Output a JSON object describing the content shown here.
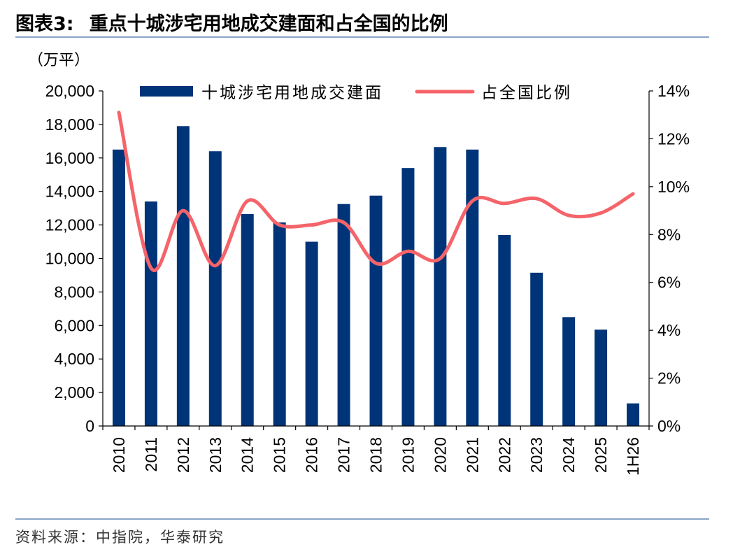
{
  "header": {
    "figure_number": "图表3:",
    "title": "重点十城涉宅用地成交建面和占全国的比例"
  },
  "footer": {
    "source": "资料来源：中指院，华泰研究"
  },
  "colors": {
    "bar": "#003478",
    "line": "#f4646a",
    "rule": "#8aa5c8"
  },
  "chart_data": {
    "type": "bar",
    "categories": [
      "2010",
      "2011",
      "2012",
      "2013",
      "2014",
      "2015",
      "2016",
      "2017",
      "2018",
      "2019",
      "2020",
      "2021",
      "2022",
      "2023",
      "2024",
      "2025",
      "1H26"
    ],
    "series": [
      {
        "name": "十城涉宅用地成交建面",
        "type": "bar",
        "axis": "left",
        "values": [
          16500,
          13400,
          17900,
          16400,
          12650,
          12150,
          11000,
          13250,
          13750,
          15400,
          16650,
          16500,
          11400,
          9150,
          6500,
          5750,
          1350
        ]
      },
      {
        "name": "占全国比例",
        "type": "line",
        "axis": "right",
        "values": [
          13.1,
          6.6,
          9.0,
          6.7,
          9.4,
          8.4,
          8.4,
          8.5,
          6.8,
          7.3,
          7.0,
          9.4,
          9.3,
          9.5,
          8.8,
          8.9,
          9.7
        ]
      }
    ],
    "y_left": {
      "unit_label": "（万平）",
      "range": [
        0,
        20000
      ],
      "ticks": [
        0,
        2000,
        4000,
        6000,
        8000,
        10000,
        12000,
        14000,
        16000,
        18000,
        20000
      ],
      "tick_labels": [
        "0",
        "2,000",
        "4,000",
        "6,000",
        "8,000",
        "10,000",
        "12,000",
        "14,000",
        "16,000",
        "18,000",
        "20,000"
      ]
    },
    "y_right": {
      "range": [
        0,
        14
      ],
      "ticks": [
        0,
        2,
        4,
        6,
        8,
        10,
        12,
        14
      ],
      "tick_labels": [
        "0%",
        "2%",
        "4%",
        "6%",
        "8%",
        "10%",
        "12%",
        "14%"
      ]
    },
    "legend_position": "top-center",
    "grid": false
  }
}
